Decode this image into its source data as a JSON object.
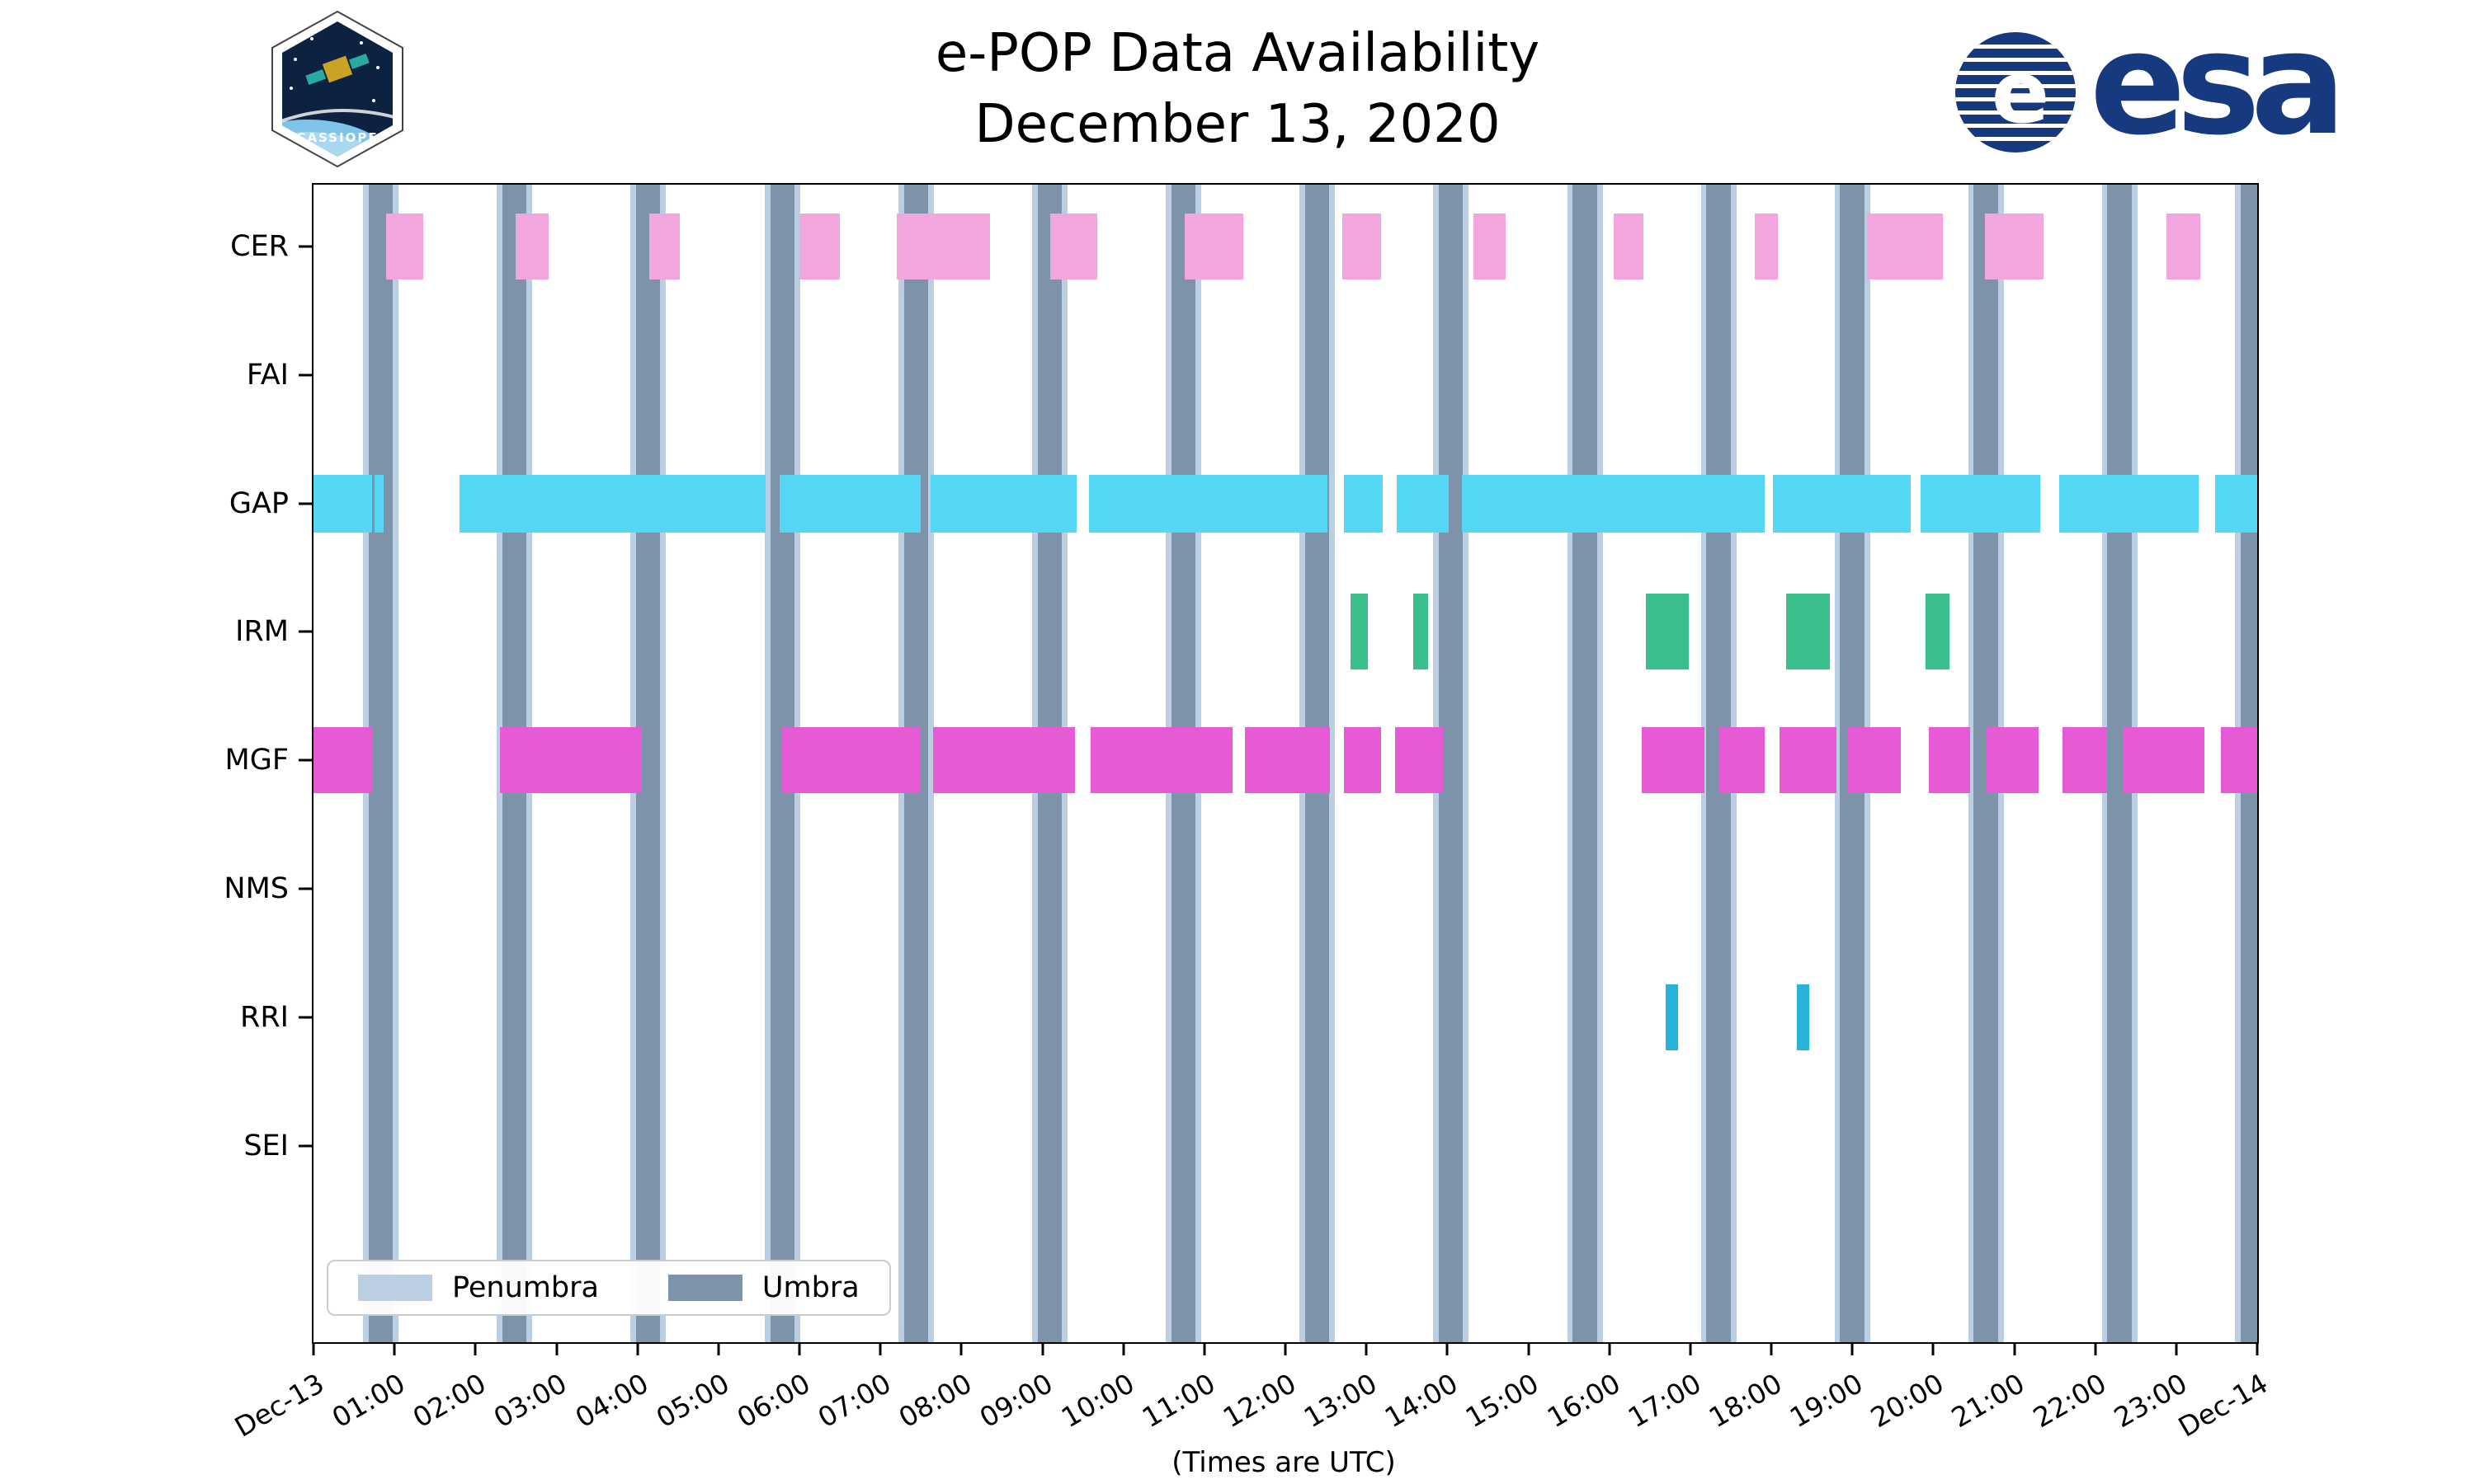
{
  "logos": {
    "esa_text": "esa",
    "cassiope_text": "CASSIOPE"
  },
  "legend": {
    "items": [
      {
        "label": "Penumbra"
      },
      {
        "label": "Umbra"
      }
    ]
  },
  "chart_data": {
    "type": "availability-timeline",
    "title": "e-POP Data Availability",
    "subtitle": "December 13, 2020",
    "x_label": "(Times are UTC)",
    "x_range_hours": [
      0,
      24
    ],
    "x_tick_labels": [
      "Dec-13",
      "01:00",
      "02:00",
      "03:00",
      "04:00",
      "05:00",
      "06:00",
      "07:00",
      "08:00",
      "09:00",
      "10:00",
      "11:00",
      "12:00",
      "13:00",
      "14:00",
      "15:00",
      "16:00",
      "17:00",
      "18:00",
      "19:00",
      "20:00",
      "21:00",
      "22:00",
      "23:00",
      "Dec-14"
    ],
    "rows": [
      "CER",
      "FAI",
      "GAP",
      "IRM",
      "MGF",
      "NMS",
      "RRI",
      "SEI"
    ],
    "colors": {
      "CER": "#f2a6de",
      "FAI": "#f2a6de",
      "GAP": "#55d6f5",
      "IRM": "#3abf8c",
      "MGF": "#e65ad5",
      "NMS": "#e65ad5",
      "RRI": "#27b3dc",
      "SEI": "#27b3dc",
      "penumbra": "#bccfe2",
      "umbra": "#7d93a9"
    },
    "penumbra_pad_hours": 0.07,
    "umbra_intervals_hours": [
      [
        0.68,
        0.98
      ],
      [
        2.33,
        2.63
      ],
      [
        3.98,
        4.28
      ],
      [
        5.64,
        5.94
      ],
      [
        7.29,
        7.59
      ],
      [
        8.94,
        9.24
      ],
      [
        10.59,
        10.89
      ],
      [
        12.24,
        12.54
      ],
      [
        13.89,
        14.19
      ],
      [
        15.55,
        15.85
      ],
      [
        17.2,
        17.5
      ],
      [
        18.85,
        19.15
      ],
      [
        20.5,
        20.8
      ],
      [
        22.15,
        22.45
      ],
      [
        23.8,
        24.0
      ]
    ],
    "series_intervals_hours": {
      "CER": [
        [
          0.9,
          1.35
        ],
        [
          2.5,
          2.9
        ],
        [
          4.15,
          4.52
        ],
        [
          6.0,
          6.5
        ],
        [
          7.2,
          8.35
        ],
        [
          9.1,
          9.68
        ],
        [
          10.76,
          11.48
        ],
        [
          12.7,
          13.18
        ],
        [
          14.32,
          14.72
        ],
        [
          16.05,
          16.42
        ],
        [
          17.8,
          18.08
        ],
        [
          19.18,
          20.12
        ],
        [
          20.64,
          21.36
        ],
        [
          22.88,
          23.3
        ]
      ],
      "FAI": [],
      "GAP": [
        [
          0.0,
          0.72
        ],
        [
          0.75,
          0.87
        ],
        [
          1.8,
          5.58
        ],
        [
          5.76,
          7.5
        ],
        [
          7.62,
          9.42
        ],
        [
          9.58,
          12.52
        ],
        [
          12.72,
          13.2
        ],
        [
          13.38,
          14.02
        ],
        [
          14.18,
          17.92
        ],
        [
          18.02,
          19.72
        ],
        [
          19.84,
          21.32
        ],
        [
          21.56,
          23.28
        ],
        [
          23.48,
          24.0
        ]
      ],
      "IRM": [
        [
          12.8,
          13.02
        ],
        [
          13.58,
          13.76
        ],
        [
          16.45,
          16.98
        ],
        [
          18.18,
          18.72
        ],
        [
          19.9,
          20.2
        ]
      ],
      "MGF": [
        [
          0.0,
          0.72
        ],
        [
          2.3,
          4.05
        ],
        [
          5.78,
          7.5
        ],
        [
          7.65,
          9.4
        ],
        [
          9.6,
          11.35
        ],
        [
          11.5,
          12.55
        ],
        [
          12.72,
          13.18
        ],
        [
          13.35,
          13.95
        ],
        [
          16.4,
          17.18
        ],
        [
          17.35,
          17.92
        ],
        [
          18.1,
          18.8
        ],
        [
          18.95,
          19.6
        ],
        [
          19.95,
          20.45
        ],
        [
          20.65,
          21.3
        ],
        [
          21.6,
          22.15
        ],
        [
          22.35,
          23.35
        ],
        [
          23.55,
          24.0
        ]
      ],
      "NMS": [],
      "RRI": [
        [
          16.7,
          16.85
        ],
        [
          18.32,
          18.47
        ]
      ],
      "SEI": []
    },
    "legend": {
      "entries": [
        "Penumbra",
        "Umbra"
      ],
      "position": "lower left"
    }
  }
}
